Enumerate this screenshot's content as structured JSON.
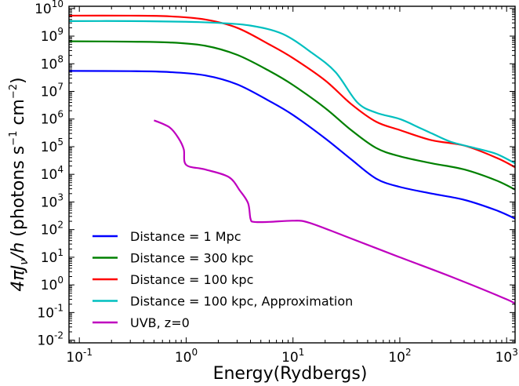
{
  "chart_data": {
    "type": "line",
    "xscale": "log",
    "yscale": "log",
    "xlim": [
      0.08,
      1200
    ],
    "ylim": [
      0.008,
      12000000000
    ],
    "xlabel": "Energy(Rydbergs)",
    "ylabel_math": "4πJ",
    "ylabel_sub": "ν",
    "ylabel_den": "/h",
    "ylabel_units": " (photons s",
    "ylabel_sup1": "−1",
    "ylabel_units2": " cm",
    "ylabel_sup2": "−2",
    "ylabel_close": ")",
    "x_ticks": [
      {
        "value": 0.1,
        "base": "10",
        "exp": "-1"
      },
      {
        "value": 1,
        "base": "10",
        "exp": "0"
      },
      {
        "value": 10,
        "base": "10",
        "exp": "1"
      },
      {
        "value": 100,
        "base": "10",
        "exp": "2"
      },
      {
        "value": 1000,
        "base": "10",
        "exp": "3"
      }
    ],
    "y_ticks": [
      {
        "value": 0.01,
        "base": "10",
        "exp": "-2"
      },
      {
        "value": 0.1,
        "base": "10",
        "exp": "-1"
      },
      {
        "value": 1,
        "base": "10",
        "exp": "0"
      },
      {
        "value": 10,
        "base": "10",
        "exp": "1"
      },
      {
        "value": 100,
        "base": "10",
        "exp": "2"
      },
      {
        "value": 1000,
        "base": "10",
        "exp": "3"
      },
      {
        "value": 10000,
        "base": "10",
        "exp": "4"
      },
      {
        "value": 100000,
        "base": "10",
        "exp": "5"
      },
      {
        "value": 1000000,
        "base": "10",
        "exp": "6"
      },
      {
        "value": 10000000,
        "base": "10",
        "exp": "7"
      },
      {
        "value": 100000000,
        "base": "10",
        "exp": "8"
      },
      {
        "value": 1000000000,
        "base": "10",
        "exp": "9"
      },
      {
        "value": 10000000000,
        "base": "10",
        "exp": "10"
      }
    ],
    "legend_position": "lower-left",
    "series": [
      {
        "name": "Distance = 1 Mpc",
        "color": "#0000ff",
        "points": [
          [
            0.08,
            55000000
          ],
          [
            0.3,
            54000000
          ],
          [
            0.7,
            50000000
          ],
          [
            1.5,
            38000000
          ],
          [
            3,
            18000000
          ],
          [
            6,
            4500000
          ],
          [
            10,
            1400000
          ],
          [
            20,
            200000
          ],
          [
            35,
            35000
          ],
          [
            60,
            7000
          ],
          [
            100,
            3500
          ],
          [
            200,
            2000
          ],
          [
            400,
            1200
          ],
          [
            800,
            500
          ],
          [
            1200,
            250
          ]
        ]
      },
      {
        "name": "Distance = 300 kpc",
        "color": "#008000",
        "points": [
          [
            0.08,
            650000000
          ],
          [
            0.3,
            630000000
          ],
          [
            0.7,
            590000000
          ],
          [
            1.5,
            450000000
          ],
          [
            3,
            210000000
          ],
          [
            6,
            55000000
          ],
          [
            10,
            17000000
          ],
          [
            20,
            2500000
          ],
          [
            35,
            400000
          ],
          [
            60,
            90000
          ],
          [
            100,
            45000
          ],
          [
            200,
            25000
          ],
          [
            400,
            15000
          ],
          [
            800,
            6000
          ],
          [
            1200,
            2800
          ]
        ]
      },
      {
        "name": "Distance = 100 kpc",
        "color": "#ff0000",
        "points": [
          [
            0.08,
            5500000000
          ],
          [
            0.3,
            5500000000
          ],
          [
            0.7,
            5200000000
          ],
          [
            1.5,
            4000000000
          ],
          [
            3,
            2000000000
          ],
          [
            6,
            500000000
          ],
          [
            10,
            160000000
          ],
          [
            20,
            25000000
          ],
          [
            35,
            3500000
          ],
          [
            60,
            800000
          ],
          [
            100,
            400000
          ],
          [
            200,
            170000
          ],
          [
            400,
            110000
          ],
          [
            800,
            40000
          ],
          [
            1200,
            18000
          ]
        ]
      },
      {
        "name": "Distance = 100 kpc, Approximation",
        "color": "#00bfbf",
        "points": [
          [
            0.08,
            3500000000
          ],
          [
            0.3,
            3500000000
          ],
          [
            1,
            3300000000
          ],
          [
            2,
            3000000000
          ],
          [
            4,
            2400000000
          ],
          [
            8,
            1200000000
          ],
          [
            15,
            250000000
          ],
          [
            25,
            50000000
          ],
          [
            40,
            4000000
          ],
          [
            60,
            1700000
          ],
          [
            100,
            1000000
          ],
          [
            150,
            500000
          ],
          [
            200,
            300000
          ],
          [
            300,
            150000
          ],
          [
            500,
            90000
          ],
          [
            800,
            55000
          ],
          [
            1200,
            25000
          ]
        ]
      },
      {
        "name": "UVB, z=0",
        "color": "#bf00bf",
        "points": [
          [
            0.5,
            900000
          ],
          [
            0.7,
            500000
          ],
          [
            0.85,
            200000
          ],
          [
            0.95,
            80000
          ],
          [
            1.0,
            22000
          ],
          [
            1.5,
            15000
          ],
          [
            2.5,
            8000
          ],
          [
            3.2,
            2500
          ],
          [
            3.8,
            900
          ],
          [
            4.0,
            250
          ],
          [
            4.3,
            190
          ],
          [
            6,
            190
          ],
          [
            10,
            210
          ],
          [
            14,
            180
          ],
          [
            30,
            60
          ],
          [
            100,
            10
          ],
          [
            300,
            2
          ],
          [
            1000,
            0.3
          ],
          [
            1200,
            0.2
          ]
        ]
      }
    ]
  }
}
